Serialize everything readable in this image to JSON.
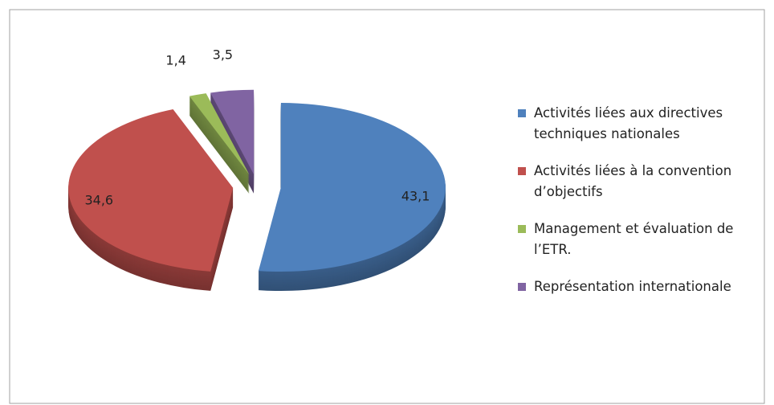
{
  "chart_data": {
    "type": "pie",
    "categories": [
      "Activités liées aux directives techniques nationales",
      "Activités liées à la convention d’objectifs",
      "Management et évaluation de l’ETR.",
      "Représentation internationale"
    ],
    "values": [
      43.1,
      34.6,
      1.4,
      3.5
    ],
    "value_labels": [
      "43,1",
      "34,6",
      "1,4",
      "3,5"
    ],
    "colors": [
      "#4f81bd",
      "#c0504d",
      "#9bbb59",
      "#8064a2"
    ],
    "legend": "right"
  }
}
